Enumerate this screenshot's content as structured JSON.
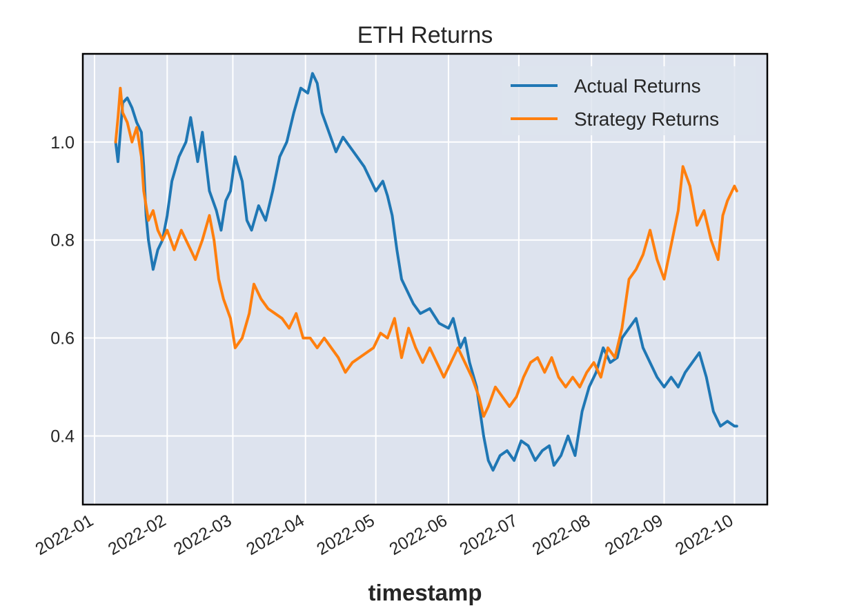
{
  "chart_data": {
    "type": "line",
    "title": "ETH Returns",
    "xlabel": "timestamp",
    "ylabel": "",
    "x_tick_labels": [
      "2022-01",
      "2022-02",
      "2022-03",
      "2022-04",
      "2022-05",
      "2022-06",
      "2022-07",
      "2022-08",
      "2022-09",
      "2022-10"
    ],
    "x_ticks": [
      "2022-01-01",
      "2022-02-01",
      "2022-03-01",
      "2022-04-01",
      "2022-05-01",
      "2022-06-01",
      "2022-07-01",
      "2022-08-01",
      "2022-09-01",
      "2022-10-01"
    ],
    "xlim": [
      "2021-12-27",
      "2022-10-15"
    ],
    "y_ticks": [
      0.4,
      0.6,
      0.8,
      1.0
    ],
    "y_tick_labels": [
      "0.4",
      "0.6",
      "0.8",
      "1.0"
    ],
    "ylim": [
      0.26,
      1.18
    ],
    "grid": true,
    "legend_position": "top-right",
    "series": [
      {
        "name": "Actual Returns",
        "color": "#1f77b4",
        "x": [
          "2022-01-10",
          "2022-01-11",
          "2022-01-12",
          "2022-01-13",
          "2022-01-15",
          "2022-01-17",
          "2022-01-19",
          "2022-01-21",
          "2022-01-22",
          "2022-01-23",
          "2022-01-24",
          "2022-01-26",
          "2022-01-28",
          "2022-01-30",
          "2022-02-01",
          "2022-02-03",
          "2022-02-06",
          "2022-02-09",
          "2022-02-11",
          "2022-02-14",
          "2022-02-16",
          "2022-02-19",
          "2022-02-22",
          "2022-02-24",
          "2022-02-26",
          "2022-02-28",
          "2022-03-02",
          "2022-03-05",
          "2022-03-07",
          "2022-03-09",
          "2022-03-12",
          "2022-03-15",
          "2022-03-18",
          "2022-03-21",
          "2022-03-24",
          "2022-03-27",
          "2022-03-30",
          "2022-04-02",
          "2022-04-04",
          "2022-04-06",
          "2022-04-08",
          "2022-04-11",
          "2022-04-14",
          "2022-04-17",
          "2022-04-20",
          "2022-04-23",
          "2022-04-26",
          "2022-04-29",
          "2022-05-01",
          "2022-05-04",
          "2022-05-06",
          "2022-05-08",
          "2022-05-10",
          "2022-05-12",
          "2022-05-14",
          "2022-05-17",
          "2022-05-20",
          "2022-05-24",
          "2022-05-28",
          "2022-06-01",
          "2022-06-03",
          "2022-06-06",
          "2022-06-08",
          "2022-06-10",
          "2022-06-13",
          "2022-06-16",
          "2022-06-18",
          "2022-06-20",
          "2022-06-23",
          "2022-06-26",
          "2022-06-29",
          "2022-07-02",
          "2022-07-05",
          "2022-07-08",
          "2022-07-11",
          "2022-07-14",
          "2022-07-16",
          "2022-07-19",
          "2022-07-22",
          "2022-07-25",
          "2022-07-28",
          "2022-07-31",
          "2022-08-03",
          "2022-08-06",
          "2022-08-09",
          "2022-08-12",
          "2022-08-14",
          "2022-08-17",
          "2022-08-20",
          "2022-08-23",
          "2022-08-26",
          "2022-08-29",
          "2022-09-01",
          "2022-09-04",
          "2022-09-07",
          "2022-09-10",
          "2022-09-13",
          "2022-09-16",
          "2022-09-19",
          "2022-09-22",
          "2022-09-25",
          "2022-09-28",
          "2022-10-01",
          "2022-10-02"
        ],
        "y": [
          1.0,
          0.96,
          1.02,
          1.08,
          1.09,
          1.07,
          1.04,
          1.02,
          0.95,
          0.85,
          0.8,
          0.74,
          0.78,
          0.8,
          0.85,
          0.92,
          0.97,
          1.0,
          1.05,
          0.96,
          1.02,
          0.9,
          0.86,
          0.82,
          0.88,
          0.9,
          0.97,
          0.92,
          0.84,
          0.82,
          0.87,
          0.84,
          0.9,
          0.97,
          1.0,
          1.06,
          1.11,
          1.1,
          1.14,
          1.12,
          1.06,
          1.02,
          0.98,
          1.01,
          0.99,
          0.97,
          0.95,
          0.92,
          0.9,
          0.92,
          0.89,
          0.85,
          0.78,
          0.72,
          0.7,
          0.67,
          0.65,
          0.66,
          0.63,
          0.62,
          0.64,
          0.58,
          0.6,
          0.55,
          0.5,
          0.4,
          0.35,
          0.33,
          0.36,
          0.37,
          0.35,
          0.39,
          0.38,
          0.35,
          0.37,
          0.38,
          0.34,
          0.36,
          0.4,
          0.36,
          0.45,
          0.5,
          0.53,
          0.58,
          0.55,
          0.56,
          0.6,
          0.62,
          0.64,
          0.58,
          0.55,
          0.52,
          0.5,
          0.52,
          0.5,
          0.53,
          0.55,
          0.57,
          0.52,
          0.45,
          0.42,
          0.43,
          0.42,
          0.42
        ]
      },
      {
        "name": "Strategy Returns",
        "color": "#ff7f0e",
        "x": [
          "2022-01-10",
          "2022-01-11",
          "2022-01-12",
          "2022-01-13",
          "2022-01-15",
          "2022-01-17",
          "2022-01-19",
          "2022-01-21",
          "2022-01-22",
          "2022-01-24",
          "2022-01-26",
          "2022-01-28",
          "2022-01-30",
          "2022-02-01",
          "2022-02-04",
          "2022-02-07",
          "2022-02-10",
          "2022-02-13",
          "2022-02-16",
          "2022-02-19",
          "2022-02-21",
          "2022-02-23",
          "2022-02-25",
          "2022-02-28",
          "2022-03-02",
          "2022-03-05",
          "2022-03-08",
          "2022-03-10",
          "2022-03-13",
          "2022-03-16",
          "2022-03-19",
          "2022-03-22",
          "2022-03-25",
          "2022-03-28",
          "2022-03-31",
          "2022-04-03",
          "2022-04-06",
          "2022-04-09",
          "2022-04-12",
          "2022-04-15",
          "2022-04-18",
          "2022-04-21",
          "2022-04-24",
          "2022-04-27",
          "2022-04-30",
          "2022-05-03",
          "2022-05-06",
          "2022-05-09",
          "2022-05-12",
          "2022-05-15",
          "2022-05-18",
          "2022-05-21",
          "2022-05-24",
          "2022-05-27",
          "2022-05-30",
          "2022-06-02",
          "2022-06-05",
          "2022-06-08",
          "2022-06-11",
          "2022-06-14",
          "2022-06-16",
          "2022-06-18",
          "2022-06-21",
          "2022-06-24",
          "2022-06-27",
          "2022-06-30",
          "2022-07-03",
          "2022-07-06",
          "2022-07-09",
          "2022-07-12",
          "2022-07-15",
          "2022-07-18",
          "2022-07-21",
          "2022-07-24",
          "2022-07-27",
          "2022-07-30",
          "2022-08-02",
          "2022-08-05",
          "2022-08-08",
          "2022-08-11",
          "2022-08-14",
          "2022-08-17",
          "2022-08-20",
          "2022-08-23",
          "2022-08-26",
          "2022-08-29",
          "2022-09-01",
          "2022-09-04",
          "2022-09-07",
          "2022-09-09",
          "2022-09-12",
          "2022-09-15",
          "2022-09-18",
          "2022-09-21",
          "2022-09-24",
          "2022-09-26",
          "2022-09-28",
          "2022-10-01",
          "2022-10-02"
        ],
        "y": [
          1.0,
          1.05,
          1.11,
          1.06,
          1.04,
          1.0,
          1.03,
          0.97,
          0.9,
          0.84,
          0.86,
          0.82,
          0.8,
          0.82,
          0.78,
          0.82,
          0.79,
          0.76,
          0.8,
          0.85,
          0.8,
          0.72,
          0.68,
          0.64,
          0.58,
          0.6,
          0.65,
          0.71,
          0.68,
          0.66,
          0.65,
          0.64,
          0.62,
          0.65,
          0.6,
          0.6,
          0.58,
          0.6,
          0.58,
          0.56,
          0.53,
          0.55,
          0.56,
          0.57,
          0.58,
          0.61,
          0.6,
          0.64,
          0.56,
          0.62,
          0.58,
          0.55,
          0.58,
          0.55,
          0.52,
          0.55,
          0.58,
          0.55,
          0.52,
          0.48,
          0.44,
          0.46,
          0.5,
          0.48,
          0.46,
          0.48,
          0.52,
          0.55,
          0.56,
          0.53,
          0.56,
          0.52,
          0.5,
          0.52,
          0.5,
          0.53,
          0.55,
          0.52,
          0.58,
          0.56,
          0.62,
          0.72,
          0.74,
          0.77,
          0.82,
          0.76,
          0.72,
          0.79,
          0.86,
          0.95,
          0.91,
          0.83,
          0.86,
          0.8,
          0.76,
          0.85,
          0.88,
          0.91,
          0.9
        ]
      }
    ]
  }
}
